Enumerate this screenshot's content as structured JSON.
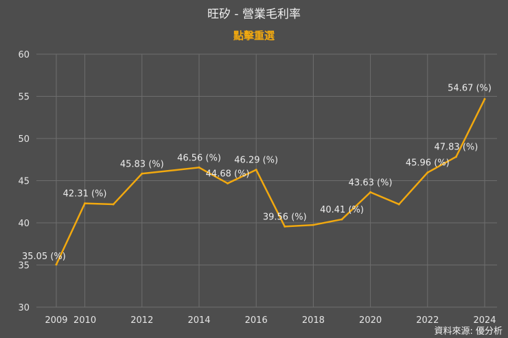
{
  "chart_data": {
    "type": "line",
    "title": "旺矽 - 營業毛利率",
    "subtitle": "點擊重選",
    "xlabel": "",
    "ylabel": "",
    "ylim": [
      30,
      60
    ],
    "yticks": [
      30,
      35,
      40,
      45,
      50,
      55,
      60
    ],
    "xlim": [
      2009,
      2024
    ],
    "xticks": [
      2009,
      2010,
      2012,
      2014,
      2016,
      2018,
      2020,
      2022,
      2024
    ],
    "grid": true,
    "series": [
      {
        "color": "#f2a90f",
        "points": [
          {
            "x": 2009,
            "y": 35.05,
            "label": "35.05 (%)"
          },
          {
            "x": 2010,
            "y": 42.31,
            "label": "42.31 (%)"
          },
          {
            "x": 2011,
            "y": 42.2,
            "label": ""
          },
          {
            "x": 2012,
            "y": 45.83,
            "label": "45.83 (%)"
          },
          {
            "x": 2014,
            "y": 46.56,
            "label": "46.56 (%)"
          },
          {
            "x": 2015,
            "y": 44.68,
            "label": "44.68 (%)"
          },
          {
            "x": 2016,
            "y": 46.29,
            "label": "46.29 (%)"
          },
          {
            "x": 2017,
            "y": 39.56,
            "label": "39.56 (%)"
          },
          {
            "x": 2018,
            "y": 39.75,
            "label": ""
          },
          {
            "x": 2019,
            "y": 40.41,
            "label": "40.41 (%)"
          },
          {
            "x": 2020,
            "y": 43.63,
            "label": "43.63 (%)"
          },
          {
            "x": 2021,
            "y": 42.2,
            "label": ""
          },
          {
            "x": 2022,
            "y": 45.96,
            "label": "45.96 (%)"
          },
          {
            "x": 2023,
            "y": 47.83,
            "label": "47.83 (%)"
          },
          {
            "x": 2024,
            "y": 54.67,
            "label": "54.67 (%)"
          }
        ]
      }
    ]
  },
  "credit": "資料來源: 優分析",
  "colors": {
    "background": "#4d4d4d",
    "line": "#f2a90f",
    "grid": "#6e6e6e",
    "accent": "#f2a90f"
  }
}
